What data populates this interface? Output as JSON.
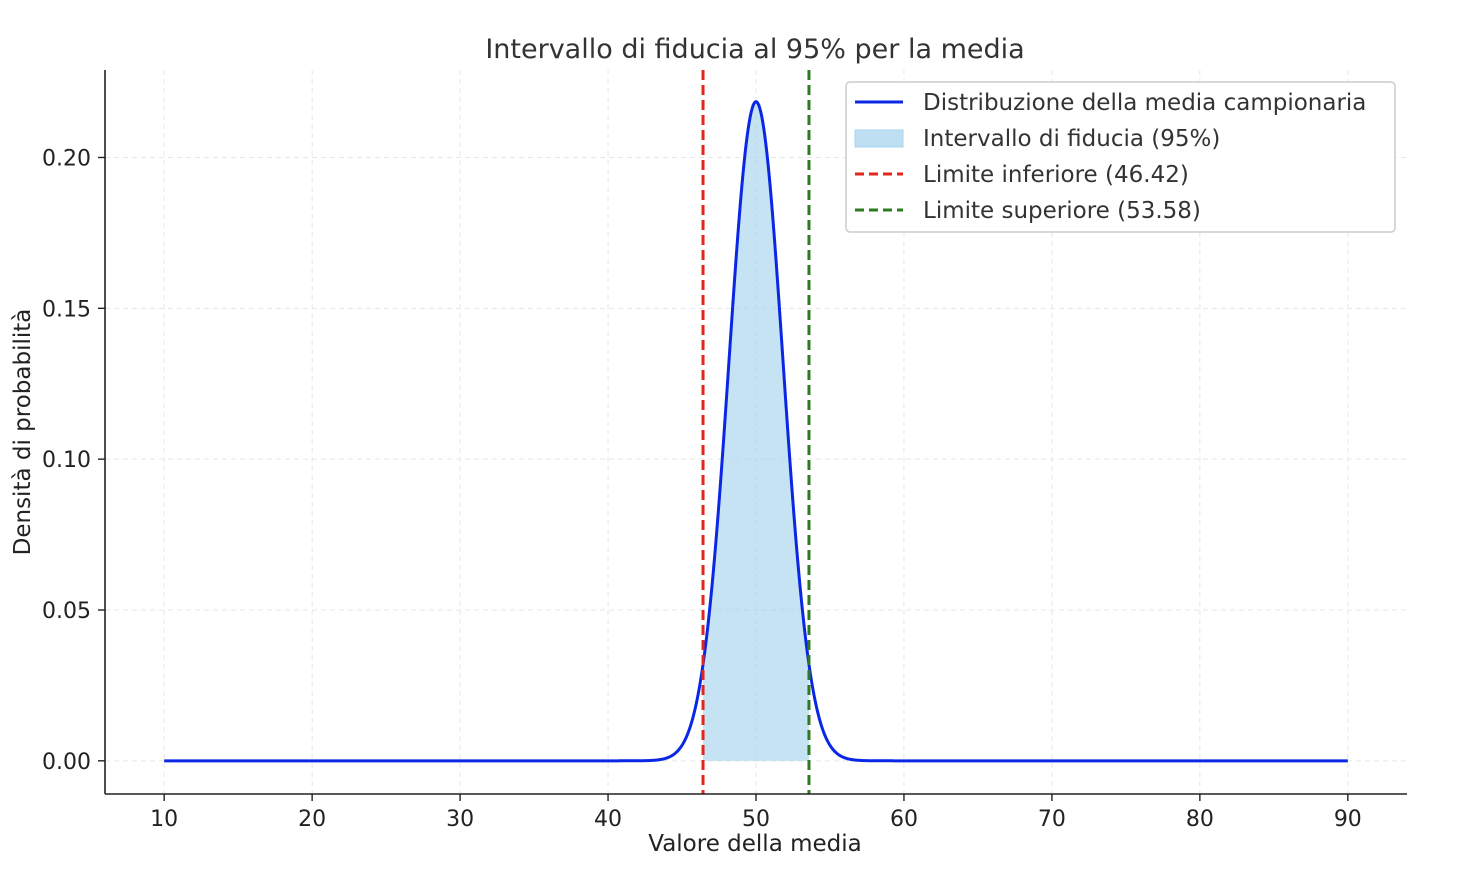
{
  "chart_data": {
    "type": "line",
    "title": "Intervallo di fiducia al 95% per la media",
    "xlabel": "Valore della media",
    "ylabel": "Densità di probabilità",
    "xlim": [
      6,
      94
    ],
    "ylim": [
      -0.011,
      0.229
    ],
    "grid": true,
    "legend_position": "top-right",
    "x_ticks": [
      10,
      20,
      30,
      40,
      50,
      60,
      70,
      80,
      90
    ],
    "x_tick_labels": [
      "10",
      "20",
      "30",
      "40",
      "50",
      "60",
      "70",
      "80",
      "90"
    ],
    "y_ticks": [
      0.0,
      0.05,
      0.1,
      0.15,
      0.2
    ],
    "y_tick_labels": [
      "0.00",
      "0.05",
      "0.10",
      "0.15",
      "0.20"
    ],
    "series": [
      {
        "name": "Distribuzione della media campionaria",
        "kind": "normal-density",
        "mean": 50,
        "std": 1.826,
        "x_range": [
          10,
          90
        ],
        "peak": 0.2185,
        "color": "#0a27e6"
      }
    ],
    "fill": {
      "name": "Intervallo di fiducia (95%)",
      "x_range": [
        46.42,
        53.58
      ],
      "color": "#a8d4ec"
    },
    "vlines": [
      {
        "name": "Limite inferiore (46.42)",
        "x": 46.42,
        "color": "#e0271e"
      },
      {
        "name": "Limite superiore (53.58)",
        "x": 53.58,
        "color": "#2e7a22"
      }
    ],
    "legend": [
      {
        "label": "Distribuzione della media campionaria",
        "style": "line",
        "color": "#0a27e6"
      },
      {
        "label": "Intervallo di fiducia (95%)",
        "style": "patch",
        "color": "#a8d4ec"
      },
      {
        "label": "Limite inferiore (46.42)",
        "style": "dashed",
        "color": "#e0271e"
      },
      {
        "label": "Limite superiore (53.58)",
        "style": "dashed",
        "color": "#2e7a22"
      }
    ]
  }
}
